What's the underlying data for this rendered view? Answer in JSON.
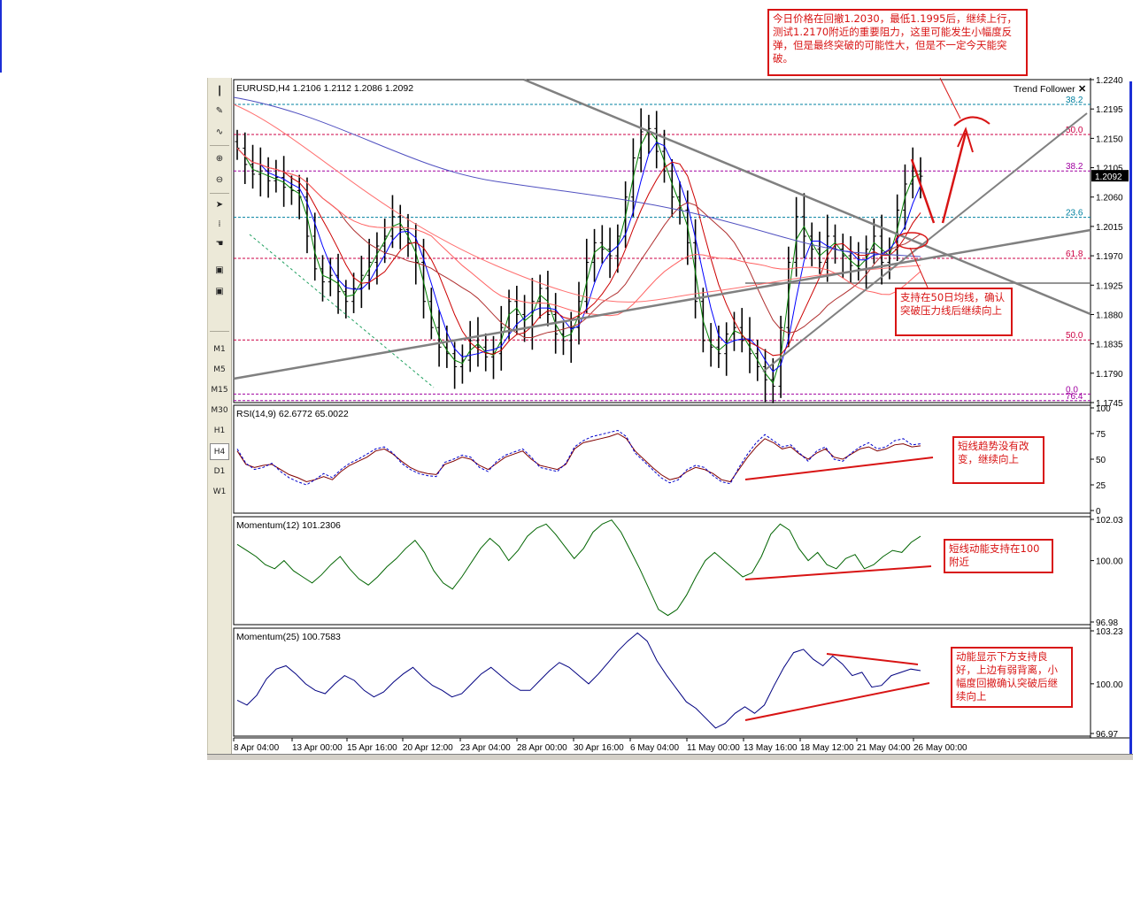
{
  "toolbar": {
    "icons": [
      "line-tool-icon",
      "pencil-icon",
      "fibonacci-icon",
      "zoom-in-icon",
      "zoom-out-icon",
      "cursor-icon",
      "properties-icon",
      "hand-icon",
      "chart-window-icon",
      "chart-window-icon"
    ],
    "timeframes": [
      "M1",
      "M5",
      "M15",
      "M30",
      "H1",
      "H4",
      "D1",
      "W1"
    ],
    "selected": "H4"
  },
  "annotations": {
    "top": "今日价格在回撤1.2030，最低1.1995后，继续上行，测试1.2170附近的重要阻力，这里可能发生小幅度反弹，但是最终突破的可能性大，但是不一定今天能突破。",
    "main": "支持在50日均线，确认突破压力线后继续向上",
    "rsi": "短线趋势没有改变，继续向上",
    "mom12": "短线动能支持在100附近",
    "mom25": "动能显示下方支持良好，上边有弱背离，小幅度回撤确认突破后继续向上"
  },
  "colors": {
    "up": "#000000",
    "ma_green": "#008000",
    "ma_blue": "#0000ff",
    "ma_red": "#cc0000",
    "ma_red2": "#ff6060",
    "ma_purple": "#3333aa",
    "rsi": "#800000",
    "mom12": "#006400",
    "mom25": "#000080",
    "note": "#d81414",
    "trendline": "#808080",
    "fib_label": "#800080",
    "fib_label2": "#008080"
  },
  "chart_data": [
    {
      "type": "line",
      "title": "EURUSD,H4 1.2106 1.2112 1.2086 1.2092",
      "symbol": "EURUSD,H4",
      "quote": {
        "open": 1.2106,
        "high": 1.2112,
        "low": 1.2086,
        "close": 1.2092
      },
      "indicator_label": "Trend Follower",
      "ylim": [
        1.1745,
        1.224
      ],
      "y_ticks": [
        "1.2240",
        "1.2195",
        "1.2150",
        "1.2105",
        "1.2060",
        "1.2015",
        "1.1970",
        "1.1925",
        "1.1880",
        "1.1835",
        "1.1790",
        "1.1745"
      ],
      "current_price_label": "1.2092",
      "x_tick_labels": [
        "8 Apr 04:00",
        "13 Apr 00:00",
        "15 Apr 16:00",
        "20 Apr 12:00",
        "23 Apr 04:00",
        "28 Apr 00:00",
        "30 Apr 16:00",
        "6 May 04:00",
        "11 May 00:00",
        "13 May 16:00",
        "18 May 12:00",
        "21 May 04:00",
        "26 May 00:00"
      ],
      "fib_levels": [
        {
          "label": "38.2",
          "price": 1.2202
        },
        {
          "label": "50.0",
          "price": 1.2156
        },
        {
          "label": "38.2",
          "price": 1.21
        },
        {
          "label": "23.6",
          "price": 1.2029
        },
        {
          "label": "61.8",
          "price": 1.1966
        },
        {
          "label": "50.0",
          "price": 1.1841
        },
        {
          "label": "0.0",
          "price": 1.1758
        },
        {
          "label": "76.4",
          "price": 1.1748
        }
      ],
      "closes": [
        1.2135,
        1.211,
        1.2095,
        1.21,
        1.2085,
        1.209,
        1.2075,
        1.207,
        1.206,
        1.2,
        1.195,
        1.193,
        1.194,
        1.1915,
        1.19,
        1.192,
        1.194,
        1.196,
        1.1985,
        1.2,
        1.203,
        1.201,
        1.199,
        1.196,
        1.19,
        1.186,
        1.183,
        1.182,
        1.18,
        1.181,
        1.184,
        1.183,
        1.1815,
        1.182,
        1.186,
        1.19,
        1.188,
        1.186,
        1.19,
        1.192,
        1.188,
        1.185,
        1.184,
        1.186,
        1.19,
        1.196,
        1.199,
        1.198,
        1.197,
        1.2,
        1.206,
        1.212,
        1.216,
        1.2165,
        1.213,
        1.21,
        1.206,
        1.204,
        1.199,
        1.19,
        1.184,
        1.183,
        1.182,
        1.185,
        1.186,
        1.184,
        1.182,
        1.18,
        1.178,
        1.177,
        1.186,
        1.196,
        1.203,
        1.2,
        1.198,
        1.196,
        1.2,
        1.198,
        1.197,
        1.1955,
        1.195,
        1.198,
        1.2,
        1.196,
        1.198,
        1.204,
        1.208,
        1.21,
        1.2092
      ]
    },
    {
      "type": "line",
      "title": "RSI(14,9) 62.6772 65.0022",
      "ylim": [
        0,
        100
      ],
      "y_ticks": [
        "100",
        "75",
        "50",
        "25",
        "0"
      ],
      "series": [
        {
          "name": "RSI(14)",
          "values": [
            58,
            45,
            42,
            44,
            45,
            40,
            35,
            32,
            28,
            30,
            33,
            30,
            38,
            44,
            48,
            52,
            58,
            60,
            55,
            48,
            42,
            38,
            36,
            35,
            45,
            48,
            52,
            50,
            44,
            40,
            46,
            52,
            55,
            58,
            50,
            44,
            42,
            40,
            45,
            60,
            66,
            68,
            70,
            72,
            75,
            70,
            58,
            50,
            42,
            35,
            30,
            32,
            38,
            42,
            40,
            36,
            30,
            28,
            40,
            52,
            62,
            70,
            66,
            60,
            62,
            55,
            50,
            56,
            60,
            52,
            50,
            55,
            60,
            62,
            58,
            60,
            64,
            65,
            62,
            63
          ]
        },
        {
          "name": "RSI(9)",
          "values": [
            60,
            46,
            40,
            42,
            46,
            38,
            32,
            28,
            25,
            30,
            36,
            32,
            40,
            46,
            50,
            55,
            60,
            62,
            56,
            46,
            40,
            36,
            34,
            33,
            47,
            50,
            54,
            52,
            42,
            38,
            48,
            54,
            57,
            60,
            52,
            42,
            40,
            38,
            46,
            62,
            68,
            72,
            74,
            76,
            78,
            72,
            56,
            48,
            40,
            32,
            27,
            30,
            40,
            44,
            42,
            34,
            28,
            26,
            42,
            55,
            66,
            74,
            68,
            62,
            64,
            56,
            48,
            58,
            62,
            50,
            48,
            56,
            62,
            66,
            60,
            62,
            68,
            70,
            64,
            65
          ]
        }
      ]
    },
    {
      "type": "line",
      "title": "Momentum(12) 101.2306",
      "ylim": [
        96.98,
        102.03
      ],
      "y_ticks": [
        "102.03",
        "100.00",
        "96.98"
      ],
      "series": [
        {
          "name": "Momentum(12)",
          "values": [
            100.8,
            100.5,
            100.2,
            99.8,
            99.6,
            100.0,
            99.5,
            99.2,
            98.9,
            99.3,
            99.8,
            100.2,
            99.6,
            99.1,
            98.8,
            99.2,
            99.7,
            100.1,
            100.6,
            101.0,
            100.4,
            99.5,
            98.9,
            98.6,
            99.2,
            99.9,
            100.6,
            101.1,
            100.7,
            100.0,
            100.5,
            101.2,
            101.6,
            101.8,
            101.3,
            100.7,
            100.1,
            100.6,
            101.4,
            101.8,
            102.0,
            101.4,
            100.5,
            99.6,
            98.6,
            97.6,
            97.3,
            97.6,
            98.3,
            99.2,
            100.0,
            100.4,
            100.0,
            99.6,
            99.2,
            99.4,
            100.2,
            101.3,
            101.8,
            101.5,
            100.6,
            100.0,
            100.4,
            99.8,
            99.6,
            100.1,
            100.3,
            99.6,
            99.8,
            100.2,
            100.5,
            100.4,
            100.9,
            101.2
          ]
        }
      ]
    },
    {
      "type": "line",
      "title": "Momentum(25) 100.7583",
      "ylim": [
        96.97,
        103.23
      ],
      "y_ticks": [
        "103.23",
        "100.00",
        "96.97"
      ],
      "series": [
        {
          "name": "Momentum(25)",
          "values": [
            99.0,
            98.7,
            99.3,
            100.3,
            100.9,
            101.1,
            100.6,
            100.0,
            99.6,
            99.4,
            100.0,
            100.5,
            100.2,
            99.6,
            99.2,
            99.5,
            100.1,
            100.6,
            101.0,
            100.4,
            99.9,
            99.6,
            99.2,
            99.4,
            100.0,
            100.6,
            101.0,
            100.5,
            100.0,
            99.6,
            99.6,
            100.2,
            100.8,
            101.3,
            101.0,
            100.5,
            100.0,
            100.6,
            101.3,
            102.0,
            102.6,
            103.1,
            102.6,
            101.4,
            100.5,
            99.7,
            98.9,
            98.5,
            97.9,
            97.3,
            97.6,
            98.2,
            98.6,
            98.2,
            98.7,
            99.9,
            101.0,
            101.9,
            102.1,
            101.5,
            101.1,
            101.7,
            101.2,
            100.5,
            100.7,
            99.8,
            99.9,
            100.5,
            100.7,
            100.9,
            100.8
          ]
        }
      ]
    }
  ]
}
